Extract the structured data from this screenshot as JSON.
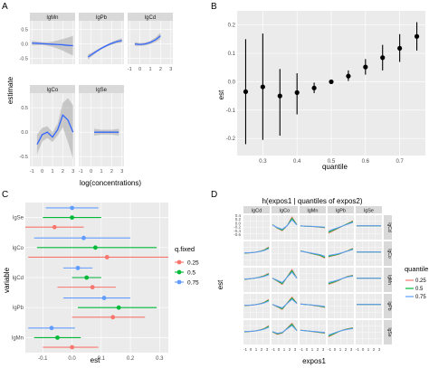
{
  "panel_letters": [
    "A",
    "B",
    "C",
    "D"
  ],
  "colors": {
    "panel_bg": "#ebebeb",
    "grid_major": "#ffffff",
    "strip_bg": "#d9d9d9",
    "strip_text": "#1a1a1a",
    "axis_text": "#4d4d4d",
    "title_text": "#000000",
    "smooth_line": "#3366ff",
    "ribbon": "#999999",
    "series_025": "#f8766d",
    "series_05": "#00ba38",
    "series_075": "#619cff"
  },
  "chart_data": [
    {
      "id": "A",
      "type": "line",
      "xlabel": "log(concentrations)",
      "ylabel": "estimate",
      "x_ticks": [
        -1,
        0,
        1,
        2,
        3
      ],
      "y_ticks": [
        -0.5,
        0.0,
        0.5
      ],
      "y_tick_labels": [
        "-0.5",
        "0.0",
        "0.5"
      ],
      "xlim": [
        -1.2,
        3.2
      ],
      "ylim": [
        -0.7,
        0.8
      ],
      "grid": true,
      "facets": [
        {
          "name": "lgMn",
          "points": [
            [
              -1,
              0.03
            ],
            [
              -0.5,
              0.02
            ],
            [
              0,
              0.01
            ],
            [
              0.5,
              0.0
            ],
            [
              1,
              -0.01
            ],
            [
              1.5,
              -0.02
            ],
            [
              2,
              -0.03
            ],
            [
              2.5,
              -0.05
            ],
            [
              3,
              -0.06
            ]
          ],
          "ci_half": [
            0.08,
            0.06,
            0.05,
            0.06,
            0.09,
            0.14,
            0.2,
            0.27,
            0.34
          ]
        },
        {
          "name": "lgPb",
          "points": [
            [
              -0.3,
              -0.45
            ],
            [
              0,
              -0.38
            ],
            [
              0.5,
              -0.26
            ],
            [
              1,
              -0.15
            ],
            [
              1.5,
              -0.06
            ],
            [
              2,
              0.02
            ],
            [
              2.5,
              0.08
            ],
            [
              3,
              0.12
            ]
          ],
          "ci_half": [
            0.09,
            0.07,
            0.05,
            0.04,
            0.04,
            0.05,
            0.06,
            0.08
          ]
        },
        {
          "name": "lgCd",
          "points": [
            [
              -0.5,
              0.0
            ],
            [
              0,
              -0.02
            ],
            [
              0.5,
              0.0
            ],
            [
              1,
              0.05
            ],
            [
              1.5,
              0.14
            ],
            [
              2,
              0.28
            ]
          ],
          "ci_half": [
            0.07,
            0.05,
            0.05,
            0.06,
            0.08,
            0.11
          ]
        },
        {
          "name": "lgCo",
          "points": [
            [
              -0.5,
              -0.25
            ],
            [
              0,
              -0.05
            ],
            [
              0.5,
              0.0
            ],
            [
              1,
              -0.1
            ],
            [
              1.5,
              0.05
            ],
            [
              2,
              0.35
            ],
            [
              2.5,
              0.25
            ],
            [
              3,
              0.0
            ]
          ],
          "ci_half": [
            0.2,
            0.14,
            0.12,
            0.1,
            0.12,
            0.25,
            0.45,
            0.55
          ]
        },
        {
          "name": "lgSe",
          "points": [
            [
              0.3,
              0.0
            ],
            [
              1,
              0.0
            ],
            [
              2,
              0.0
            ],
            [
              2.7,
              0.0
            ]
          ],
          "ci_half": [
            0.07,
            0.05,
            0.05,
            0.07
          ]
        }
      ]
    },
    {
      "id": "B",
      "type": "scatter",
      "xlabel": "quantile",
      "ylabel": "est",
      "x_ticks": [
        0.3,
        0.4,
        0.5,
        0.6,
        0.7
      ],
      "x_tick_labels": [
        "0.3",
        "0.4",
        "0.5",
        "0.6",
        "0.7"
      ],
      "y_ticks": [
        -0.2,
        -0.1,
        0.0,
        0.1,
        0.2
      ],
      "y_tick_labels": [
        "-0.2",
        "-0.1",
        "0.0",
        "0.1",
        "0.2"
      ],
      "xlim": [
        0.225,
        0.775
      ],
      "ylim": [
        -0.26,
        0.25
      ],
      "grid": true,
      "points": [
        {
          "x": 0.25,
          "est": -0.035,
          "lo": -0.22,
          "hi": 0.15
        },
        {
          "x": 0.3,
          "est": -0.018,
          "lo": -0.205,
          "hi": 0.17
        },
        {
          "x": 0.35,
          "est": -0.05,
          "lo": -0.19,
          "hi": 0.045
        },
        {
          "x": 0.4,
          "est": -0.038,
          "lo": -0.115,
          "hi": 0.03
        },
        {
          "x": 0.45,
          "est": -0.022,
          "lo": -0.04,
          "hi": -0.003
        },
        {
          "x": 0.5,
          "est": 0.0,
          "lo": 0.0,
          "hi": 0.0
        },
        {
          "x": 0.55,
          "est": 0.02,
          "lo": 0.003,
          "hi": 0.04
        },
        {
          "x": 0.6,
          "est": 0.052,
          "lo": 0.025,
          "hi": 0.08
        },
        {
          "x": 0.65,
          "est": 0.085,
          "lo": 0.04,
          "hi": 0.13
        },
        {
          "x": 0.7,
          "est": 0.118,
          "lo": 0.07,
          "hi": 0.168
        },
        {
          "x": 0.75,
          "est": 0.16,
          "lo": 0.11,
          "hi": 0.21
        }
      ]
    },
    {
      "id": "C",
      "type": "scatter",
      "xlabel": "est",
      "ylabel": "variable",
      "categories": [
        "lgSe",
        "lgCo",
        "lgCd",
        "lgPb",
        "lgMn"
      ],
      "x_ticks": [
        -0.1,
        0.0,
        0.1,
        0.2,
        0.3
      ],
      "x_tick_labels": [
        "-0.1",
        "0.0",
        "0.1",
        "0.2",
        "0.3"
      ],
      "xlim": [
        -0.16,
        0.33
      ],
      "grid": true,
      "legend": {
        "title": "q.fixed",
        "position": "right"
      },
      "series": [
        {
          "name": "0.25",
          "est": [
            -0.06,
            0.12,
            0.07,
            0.14,
            0.0
          ],
          "lo": [
            -0.16,
            -0.15,
            -0.05,
            0.0,
            -0.1
          ],
          "hi": [
            0.04,
            0.33,
            0.15,
            0.25,
            0.09
          ]
        },
        {
          "name": "0.5",
          "est": [
            0.0,
            0.08,
            0.05,
            0.16,
            -0.05
          ],
          "lo": [
            -0.1,
            -0.12,
            0.0,
            0.02,
            -0.13
          ],
          "hi": [
            0.1,
            0.29,
            0.1,
            0.29,
            0.03
          ]
        },
        {
          "name": "0.75",
          "est": [
            0.0,
            0.04,
            0.02,
            0.11,
            -0.07
          ],
          "lo": [
            -0.09,
            -0.13,
            -0.03,
            -0.03,
            -0.15
          ],
          "hi": [
            0.09,
            0.2,
            0.07,
            0.2,
            0.01
          ]
        }
      ]
    },
    {
      "id": "D",
      "type": "line",
      "title": "h(expos1 | quantiles of expos2)",
      "xlabel": "expos1",
      "ylabel": "est",
      "col_facets": [
        "lgCd",
        "lgCo",
        "lgMn",
        "lgPb",
        "lgSe"
      ],
      "row_facets": [
        "lgCd",
        "lgCo",
        "lgMn",
        "lgPb",
        "lgSe"
      ],
      "y_tick_labels": [
        "0.4",
        "0.2",
        "0.0",
        "-0.2",
        "-0.4",
        "-0.6"
      ],
      "x_tick_labels": [
        "-1",
        "0",
        "1",
        "2",
        "3"
      ],
      "legend": {
        "title": "quantile",
        "labels": [
          "0.25",
          "0.5",
          "0.75"
        ],
        "position": "right"
      },
      "curves": [
        [
          null,
          [
            0.05,
            -0.1,
            -0.2,
            0.0,
            0.35,
            0.05
          ],
          [
            0.0,
            -0.02,
            -0.03,
            -0.04,
            -0.06,
            -0.08
          ],
          [
            -0.3,
            -0.2,
            -0.1,
            0.0,
            0.1,
            0.2
          ],
          [
            0.0,
            0.0,
            0.0,
            0.0,
            0.0,
            0.0
          ]
        ],
        [
          [
            -0.05,
            -0.04,
            -0.02,
            0.02,
            0.08,
            0.2
          ],
          null,
          [
            0.05,
            0.0,
            -0.05,
            -0.1,
            -0.15,
            -0.25
          ],
          [
            -0.2,
            -0.15,
            -0.1,
            -0.02,
            0.06,
            0.15
          ],
          [
            0.0,
            0.0,
            0.0,
            0.0,
            0.0,
            0.0
          ]
        ],
        [
          [
            -0.05,
            -0.03,
            0.0,
            0.04,
            0.1,
            0.2
          ],
          [
            0.0,
            -0.12,
            -0.25,
            0.05,
            0.35,
            0.0
          ],
          null,
          [
            -0.25,
            -0.18,
            -0.1,
            0.0,
            0.08,
            0.12
          ],
          [
            0.0,
            0.0,
            0.0,
            0.0,
            0.0,
            0.0
          ]
        ],
        [
          [
            -0.05,
            -0.04,
            -0.02,
            0.02,
            0.08,
            0.2
          ],
          [
            0.0,
            -0.1,
            -0.2,
            0.05,
            0.3,
            0.05
          ],
          [
            0.02,
            0.0,
            -0.02,
            -0.05,
            -0.08,
            -0.12
          ],
          null,
          [
            0.0,
            0.0,
            0.0,
            0.0,
            0.0,
            0.0
          ]
        ],
        [
          [
            -0.05,
            -0.04,
            -0.02,
            0.02,
            0.08,
            0.2
          ],
          [
            -0.05,
            -0.15,
            -0.1,
            0.1,
            0.3,
            0.0
          ],
          [
            0.02,
            0.0,
            -0.03,
            -0.05,
            -0.08,
            -0.1
          ],
          [
            -0.25,
            -0.15,
            -0.05,
            0.03,
            0.08,
            0.12
          ],
          null
        ]
      ]
    }
  ]
}
